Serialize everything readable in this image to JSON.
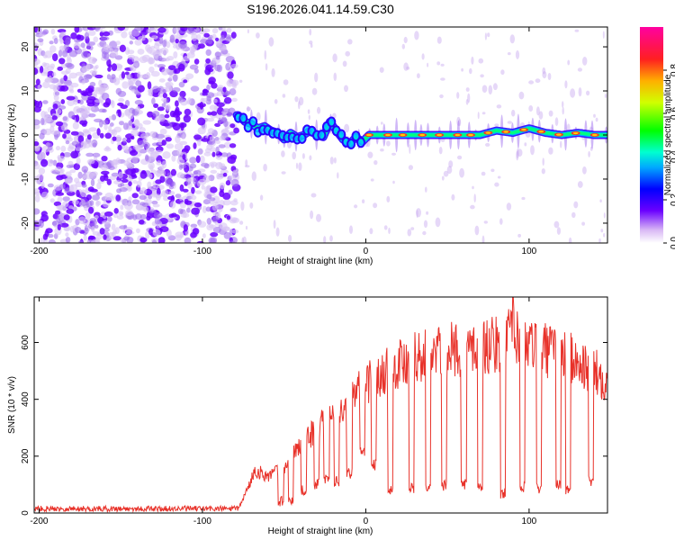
{
  "title": "S196.2026.041.14.59.C30",
  "chart_data": [
    {
      "type": "heatmap",
      "id": "spectrogram",
      "xlabel": "Height of straight line (km)",
      "ylabel": "Frequency (Hz)",
      "xlim": [
        -203,
        148
      ],
      "ylim": [
        -24.5,
        24.5
      ],
      "xticks": [
        -200,
        -100,
        0,
        100
      ],
      "yticks": [
        -20,
        -10,
        0,
        10,
        20
      ],
      "noise_region_x": [
        -203,
        -79
      ],
      "ridge": {
        "x": [
          -78,
          -74,
          -70,
          -66,
          -62,
          -58,
          -54,
          -50,
          -46,
          -42,
          -38,
          -34,
          -30,
          -26,
          -22,
          -18,
          -14,
          -10,
          -6,
          -2,
          2,
          10,
          30,
          50,
          70,
          80,
          90,
          100,
          110,
          120,
          130,
          140,
          148
        ],
        "freq": [
          4.5,
          3.0,
          2.5,
          1.5,
          2.0,
          1.0,
          0.5,
          -1.0,
          0.5,
          -0.5,
          0.0,
          1.0,
          0.0,
          -0.5,
          3.0,
          1.0,
          -1.0,
          -2.0,
          -0.5,
          -1.5,
          0.0,
          0.0,
          0.0,
          0.0,
          0.0,
          1.0,
          0.5,
          1.5,
          0.5,
          0.0,
          0.5,
          0.0,
          0.0
        ]
      },
      "colorbar": {
        "label": "Normalized spectral amplitude",
        "range": [
          0.0,
          1.0
        ],
        "ticks": [
          "0.0",
          "0.2",
          "0.4",
          "0.6",
          "0.8"
        ]
      }
    },
    {
      "type": "line",
      "id": "snr",
      "xlabel": "Height of straight line (km)",
      "ylabel": "SNR (10 * v/v)",
      "xlim": [
        -203,
        148
      ],
      "ylim": [
        0,
        760
      ],
      "xticks": [
        -200,
        -100,
        0,
        100
      ],
      "yticks": [
        0,
        200,
        400,
        600
      ],
      "color": "#e8322a",
      "series": [
        {
          "name": "SNR",
          "envelope_x": [
            -203,
            -100,
            -78,
            -72,
            -68,
            -60,
            -50,
            -40,
            -30,
            -20,
            -10,
            0,
            10,
            20,
            40,
            60,
            80,
            90,
            100,
            120,
            148
          ],
          "envelope_y": [
            15,
            15,
            15,
            90,
            150,
            130,
            160,
            240,
            300,
            340,
            380,
            460,
            500,
            530,
            560,
            580,
            590,
            620,
            590,
            560,
            470
          ],
          "dropout_x": [
            -52,
            -46,
            -38,
            -30,
            -24,
            -18,
            -10,
            -2,
            5,
            15,
            28,
            38,
            48,
            60,
            70,
            84,
            96,
            106,
            118,
            124,
            138
          ],
          "dropout_y": [
            20,
            30,
            60,
            80,
            100,
            90,
            120,
            200,
            150,
            60,
            70,
            65,
            75,
            80,
            70,
            50,
            70,
            65,
            80,
            60,
            90
          ],
          "spike": {
            "x": 90,
            "y": 760
          }
        }
      ]
    }
  ]
}
